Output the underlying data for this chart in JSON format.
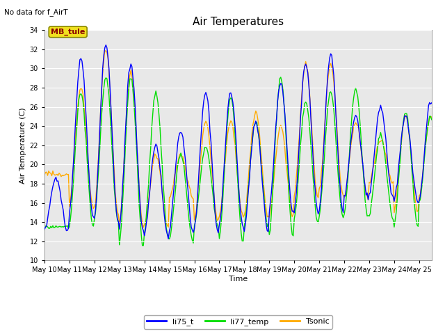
{
  "title": "Air Temperatures",
  "no_data_label": "No data for f_AirT",
  "station_label": "MB_tule",
  "xlabel": "Time",
  "ylabel": "Air Temperature (C)",
  "ylim": [
    10,
    34
  ],
  "yticks": [
    10,
    12,
    14,
    16,
    18,
    20,
    22,
    24,
    26,
    28,
    30,
    32,
    34
  ],
  "color_li75": "#0000ff",
  "color_li77": "#00dd00",
  "color_tsonic": "#ffaa00",
  "legend_entries": [
    "li75_t",
    "li77_temp",
    "Tsonic"
  ],
  "bg_color": "#e8e8e8",
  "linewidth": 1.0,
  "title_fontsize": 11,
  "axis_fontsize": 8,
  "tick_fontsize": 7,
  "legend_fontsize": 8
}
